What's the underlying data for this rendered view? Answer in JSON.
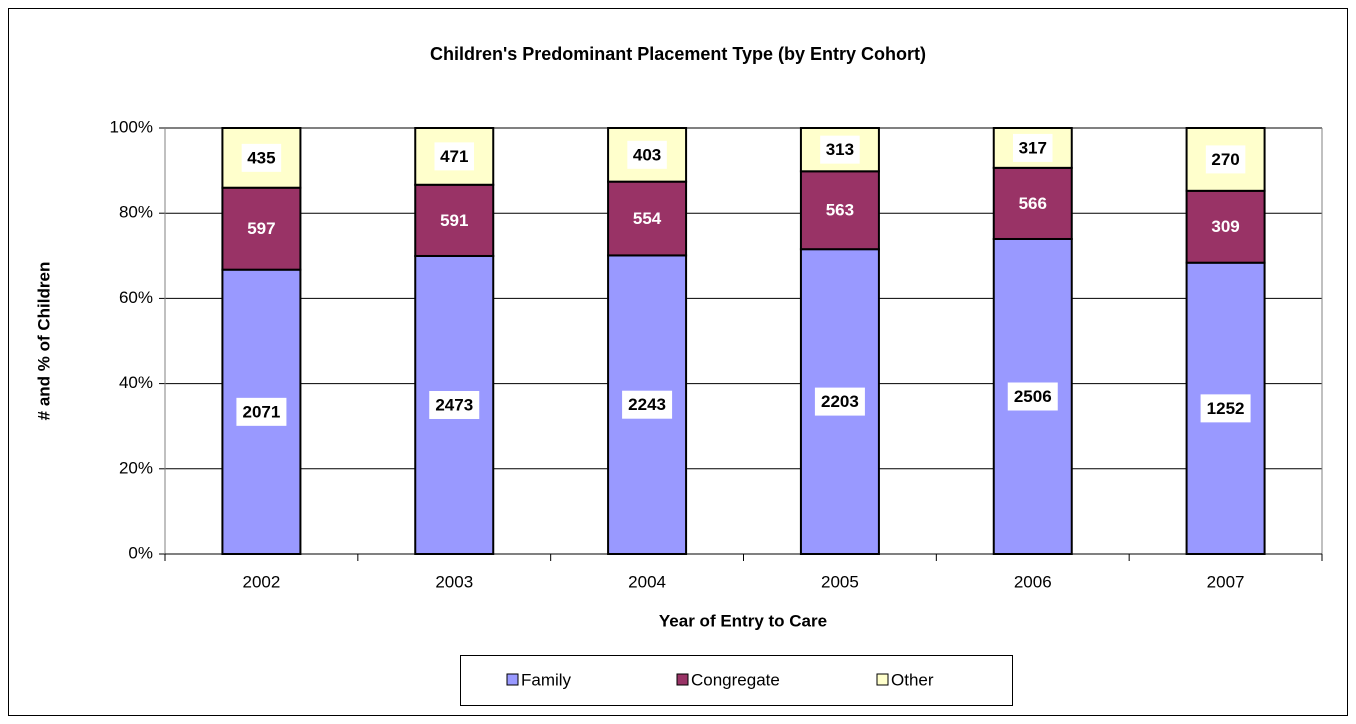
{
  "chart_data": {
    "type": "bar",
    "stacking": "percent",
    "title": "Children's Predominant Placement Type (by Entry Cohort)",
    "y_label": "# and % of Children",
    "x_label": "Year of Entry to Care",
    "categories": [
      "2002",
      "2003",
      "2004",
      "2005",
      "2006",
      "2007"
    ],
    "series": [
      {
        "name": "Family",
        "color": "#9999ff",
        "values": [
          2071,
          2473,
          2243,
          2203,
          2506,
          1252
        ]
      },
      {
        "name": "Congregate",
        "color": "#993366",
        "values": [
          597,
          591,
          554,
          563,
          566,
          309
        ]
      },
      {
        "name": "Other",
        "color": "#ffffcc",
        "values": [
          435,
          471,
          403,
          313,
          317,
          270
        ]
      }
    ],
    "ylim": [
      0,
      100
    ],
    "yticks": [
      {
        "value": 0,
        "label": "0%"
      },
      {
        "value": 20,
        "label": "20%"
      },
      {
        "value": 40,
        "label": "40%"
      },
      {
        "value": 60,
        "label": "60%"
      },
      {
        "value": 80,
        "label": "80%"
      },
      {
        "value": 100,
        "label": "100%"
      }
    ],
    "grid": true,
    "legend": "bottom"
  }
}
